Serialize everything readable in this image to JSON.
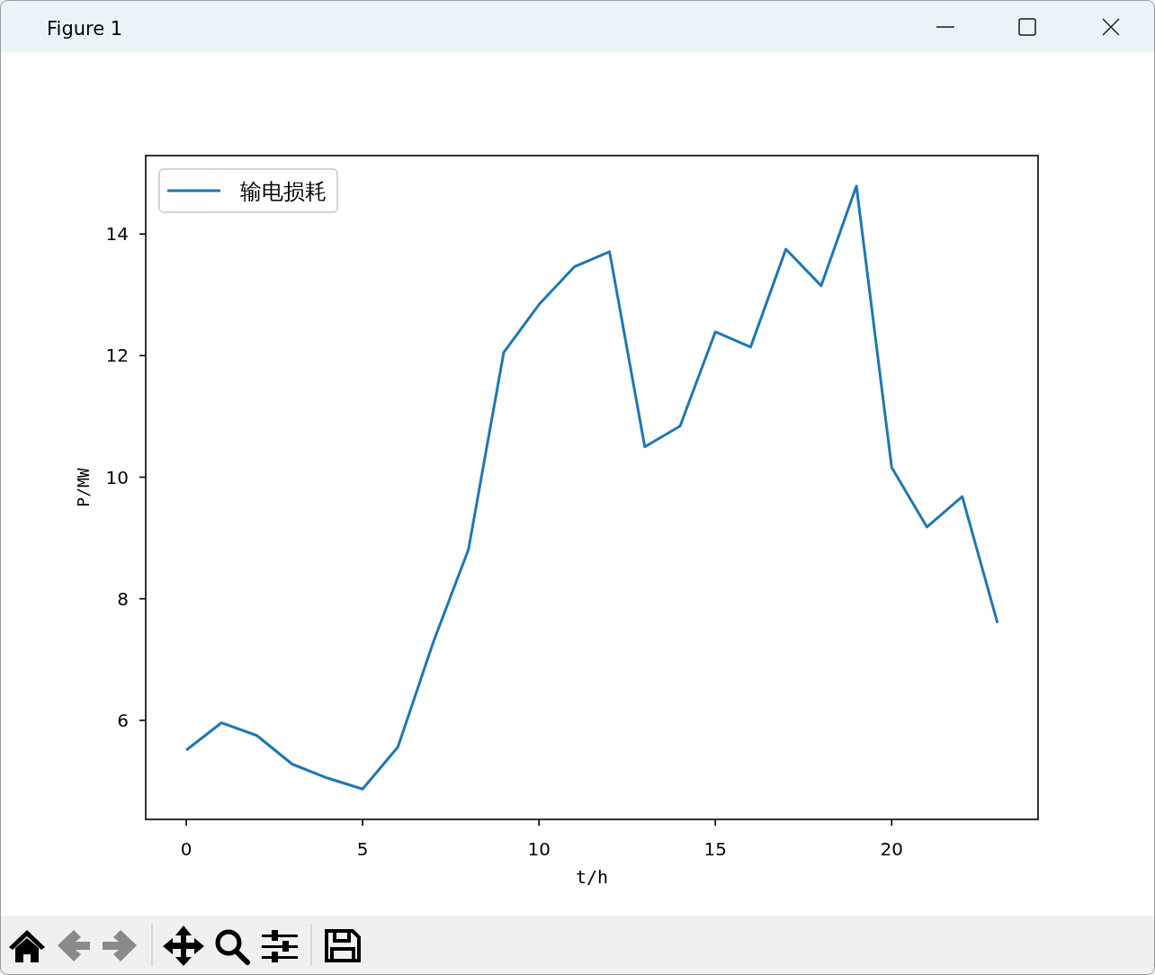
{
  "chart_data": {
    "type": "line",
    "annotations": [
      "Figure 1"
    ],
    "xlabel": "t/h",
    "ylabel": "P/MW",
    "x": [
      0,
      1,
      2,
      3,
      4,
      5,
      6,
      7,
      8,
      9,
      10,
      11,
      12,
      13,
      14,
      15,
      16,
      17,
      18,
      19,
      20,
      21,
      22,
      23
    ],
    "series": [
      {
        "name": "输电损耗",
        "color": "#1f77b4",
        "values": [
          5.51,
          5.96,
          5.75,
          5.28,
          5.05,
          4.87,
          5.56,
          7.28,
          8.81,
          12.05,
          12.84,
          13.46,
          13.71,
          10.5,
          10.84,
          12.39,
          12.14,
          13.75,
          13.15,
          14.79,
          10.16,
          9.18,
          9.68,
          7.6
        ]
      }
    ],
    "xlim": [
      -1.15,
      24.15
    ],
    "ylim": [
      4.37,
      15.29
    ],
    "xticks": [
      0,
      5,
      10,
      15,
      20
    ],
    "yticks": [
      6,
      8,
      10,
      12,
      14
    ],
    "legend": "top left"
  }
}
